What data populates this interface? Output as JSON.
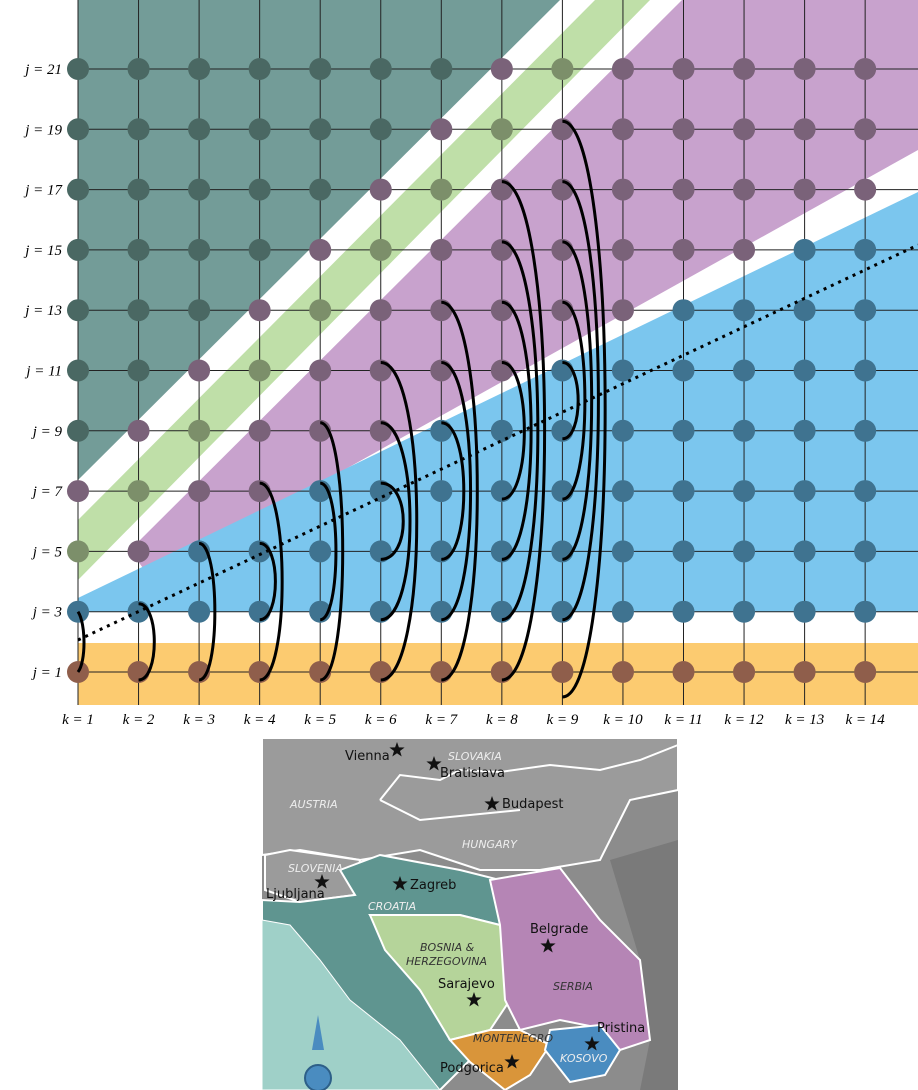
{
  "lattice": {
    "row_labels": [
      "j = 1",
      "j = 3",
      "j = 5",
      "j = 7",
      "j = 9",
      "j = 11",
      "j = 13",
      "j = 15",
      "j = 17",
      "j = 19",
      "j = 21"
    ],
    "column_labels": [
      "k = 1",
      "k = 2",
      "k = 3",
      "k = 4",
      "k = 5",
      "k = 6",
      "k = 7",
      "k = 8",
      "k = 9",
      "k = 10",
      "k = 11",
      "k = 12",
      "k = 13",
      "k = 14"
    ]
  },
  "map": {
    "cities": [
      "Vienna",
      "Bratislava",
      "Budapest",
      "Ljubljana",
      "Zagreb",
      "Belgrade",
      "Sarajevo",
      "Pristina",
      "Podgorica"
    ],
    "countries": [
      "SLOVAKIA",
      "AUSTRIA",
      "HUNGARY",
      "SLOVENIA",
      "CROATIA",
      "BOSNIA &",
      "HERZEGOVINA",
      "SERBIA",
      "MONTENEGRO",
      "KOSOVO"
    ]
  }
}
